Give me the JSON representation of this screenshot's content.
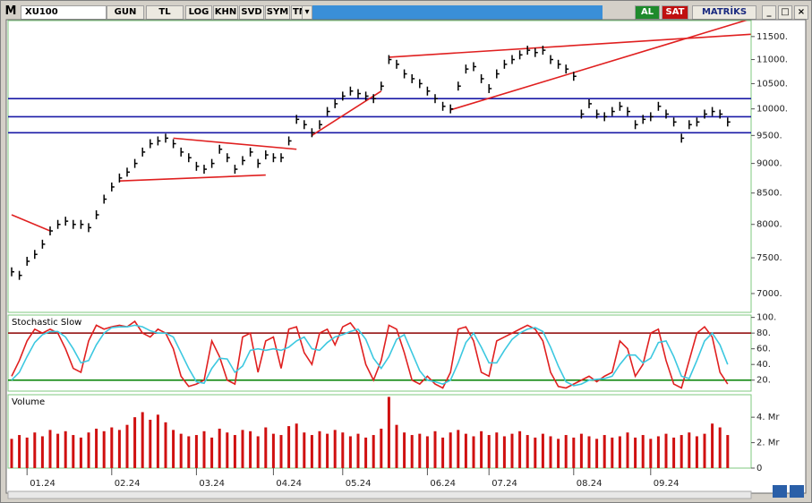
{
  "toolbar": {
    "logo": "M",
    "symbol": "XU100",
    "buttons": [
      "GUN",
      "TL",
      "LOG",
      "KHN",
      "SVD",
      "SYM",
      "TMP"
    ],
    "buy": "AL",
    "sell": "SAT",
    "brand": "MATRİKS"
  },
  "chart_data": [
    {
      "type": "ohlc",
      "color": "#000000",
      "log_scale": true,
      "ylim": [
        6750,
        11860
      ],
      "yticks": [
        {
          "value": 7000,
          "label": "7000."
        },
        {
          "value": 7500,
          "label": "7500."
        },
        {
          "value": 8000,
          "label": "8000."
        },
        {
          "value": 8500,
          "label": "8500."
        },
        {
          "value": 9000,
          "label": "9000."
        },
        {
          "value": 9500,
          "label": "9500."
        },
        {
          "value": 10000,
          "label": "10000."
        },
        {
          "value": 10500,
          "label": "10500."
        },
        {
          "value": 11000,
          "label": "11000."
        },
        {
          "value": 11500,
          "label": "11500."
        }
      ],
      "values": [
        7300,
        7250,
        7450,
        7550,
        7700,
        7900,
        8000,
        8050,
        8000,
        8000,
        7950,
        8150,
        8400,
        8600,
        8750,
        8850,
        9000,
        9200,
        9350,
        9400,
        9450,
        9350,
        9200,
        9100,
        8950,
        8900,
        9000,
        9250,
        9100,
        8900,
        9050,
        9200,
        9000,
        9150,
        9100,
        9100,
        9400,
        9800,
        9700,
        9550,
        9700,
        9950,
        10100,
        10250,
        10350,
        10300,
        10250,
        10200,
        10450,
        11000,
        10900,
        10700,
        10600,
        10500,
        10350,
        10200,
        10050,
        10000,
        10450,
        10800,
        10850,
        10600,
        10400,
        10700,
        10900,
        11000,
        11100,
        11200,
        11150,
        11200,
        11000,
        10900,
        10800,
        10650,
        9900,
        10100,
        9900,
        9850,
        9950,
        10050,
        9950,
        9700,
        9800,
        9850,
        10050,
        9900,
        9750,
        9450,
        9700,
        9750,
        9900,
        9950,
        9900,
        9750
      ],
      "hline_color": "#1a1aa6",
      "hlines": [
        10200,
        9850,
        9550
      ],
      "trend_color": "#e02020",
      "trendlines": [
        {
          "from": [
            0,
            8150
          ],
          "to": [
            5,
            7900
          ]
        },
        {
          "from": [
            21,
            9450
          ],
          "to": [
            37,
            9250
          ]
        },
        {
          "from": [
            14,
            8700
          ],
          "to": [
            33,
            8800
          ]
        },
        {
          "from": [
            39,
            9500
          ],
          "to": [
            48,
            10350
          ]
        },
        {
          "from": [
            49,
            11050
          ],
          "to": [
            96,
            11550
          ]
        },
        {
          "from": [
            57,
            9980
          ],
          "to": [
            96,
            11900
          ]
        }
      ]
    },
    {
      "type": "line",
      "title": "Stochastic Slow",
      "ylim": [
        6,
        103
      ],
      "yticks": [
        {
          "value": 20,
          "label": "20."
        },
        {
          "value": 40,
          "label": "40."
        },
        {
          "value": 60,
          "label": "60."
        },
        {
          "value": 80,
          "label": "80."
        },
        {
          "value": 100,
          "label": "100."
        }
      ],
      "levels": [
        {
          "value": 80,
          "color": "#8b0000"
        },
        {
          "value": 20,
          "color": "#008000"
        }
      ],
      "series": [
        {
          "color": "#e02020",
          "values": [
            25,
            45,
            70,
            85,
            80,
            85,
            80,
            60,
            35,
            30,
            70,
            90,
            85,
            88,
            90,
            88,
            95,
            80,
            75,
            85,
            80,
            60,
            25,
            12,
            15,
            20,
            70,
            50,
            20,
            15,
            75,
            80,
            30,
            70,
            75,
            35,
            85,
            88,
            55,
            40,
            80,
            85,
            65,
            88,
            93,
            80,
            40,
            20,
            45,
            90,
            85,
            55,
            20,
            15,
            25,
            15,
            10,
            30,
            85,
            88,
            70,
            30,
            25,
            70,
            75,
            80,
            85,
            90,
            85,
            70,
            30,
            12,
            10,
            15,
            20,
            25,
            18,
            25,
            30,
            70,
            60,
            25,
            40,
            80,
            85,
            45,
            15,
            10,
            45,
            80,
            88,
            75,
            30,
            15
          ]
        },
        {
          "color": "#3cc8e0",
          "values": [
            20,
            30,
            50,
            68,
            78,
            82,
            82,
            75,
            60,
            42,
            45,
            65,
            80,
            87,
            88,
            88,
            90,
            88,
            83,
            80,
            80,
            75,
            55,
            35,
            18,
            16,
            35,
            48,
            47,
            30,
            38,
            58,
            60,
            58,
            60,
            58,
            62,
            70,
            75,
            60,
            58,
            68,
            75,
            78,
            82,
            85,
            72,
            48,
            35,
            50,
            72,
            78,
            55,
            32,
            20,
            18,
            15,
            20,
            42,
            68,
            80,
            62,
            42,
            42,
            58,
            72,
            80,
            85,
            87,
            82,
            62,
            38,
            18,
            13,
            15,
            20,
            21,
            22,
            25,
            40,
            52,
            52,
            42,
            48,
            68,
            70,
            50,
            25,
            22,
            45,
            70,
            80,
            65,
            40
          ]
        }
      ]
    },
    {
      "type": "bar",
      "title": "Volume",
      "color": "#d01010",
      "ylim": [
        0,
        5.77
      ],
      "yticks": [
        0,
        {
          "value": 2,
          "label": "2. Mr"
        },
        {
          "value": 4,
          "label": "4. Mr"
        }
      ],
      "categories": [
        null,
        null,
        "01.24",
        null,
        null,
        null,
        null,
        null,
        null,
        null,
        null,
        null,
        null,
        "02.24",
        null,
        null,
        null,
        null,
        null,
        null,
        null,
        null,
        null,
        null,
        "03.24",
        null,
        null,
        null,
        null,
        null,
        null,
        null,
        null,
        null,
        "04.24",
        null,
        null,
        null,
        null,
        null,
        null,
        null,
        null,
        "05.24",
        null,
        null,
        null,
        null,
        null,
        null,
        null,
        null,
        null,
        null,
        "06.24",
        null,
        null,
        null,
        null,
        null,
        null,
        null,
        "07.24",
        null,
        null,
        null,
        null,
        null,
        null,
        null,
        null,
        null,
        null,
        "08.24",
        null,
        null,
        null,
        null,
        null,
        null,
        null,
        null,
        null,
        "09.24",
        null,
        null,
        null,
        null,
        null,
        null,
        null,
        null,
        null,
        null
      ],
      "values": [
        2.3,
        2.6,
        2.4,
        2.8,
        2.5,
        3.0,
        2.7,
        2.9,
        2.6,
        2.4,
        2.8,
        3.1,
        2.9,
        3.2,
        3.0,
        3.4,
        4.0,
        4.4,
        3.8,
        4.2,
        3.6,
        3.0,
        2.7,
        2.5,
        2.6,
        2.9,
        2.4,
        3.1,
        2.8,
        2.6,
        3.0,
        2.9,
        2.5,
        3.2,
        2.7,
        2.6,
        3.3,
        3.5,
        2.8,
        2.6,
        2.9,
        2.7,
        3.0,
        2.8,
        2.5,
        2.7,
        2.4,
        2.6,
        3.1,
        5.6,
        3.4,
        2.8,
        2.6,
        2.7,
        2.5,
        2.9,
        2.4,
        2.8,
        3.0,
        2.7,
        2.5,
        2.9,
        2.6,
        2.8,
        2.5,
        2.7,
        2.9,
        2.6,
        2.4,
        2.7,
        2.5,
        2.3,
        2.6,
        2.4,
        2.7,
        2.5,
        2.3,
        2.6,
        2.4,
        2.5,
        2.8,
        2.4,
        2.6,
        2.3,
        2.5,
        2.7,
        2.4,
        2.6,
        2.8,
        2.5,
        2.7,
        3.5,
        3.2,
        2.6
      ]
    }
  ]
}
